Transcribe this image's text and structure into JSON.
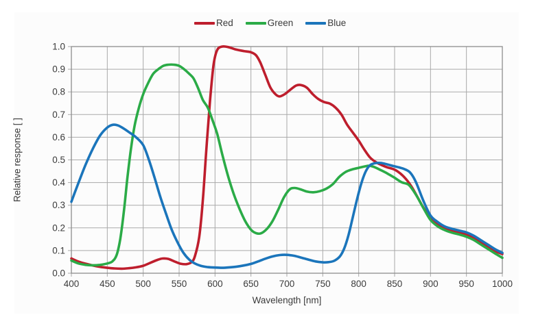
{
  "page": {
    "background_color": "#ffffff",
    "panel_color": "#fcfcfc",
    "text_color": "#3a3a3a",
    "grid_color": "#a9a9a9",
    "frame_color": "#8c8c8c"
  },
  "chart_data": {
    "type": "line",
    "title": "",
    "xlabel": "Wavelength [nm]",
    "ylabel": "Relative response [ ]",
    "xlim": [
      400,
      1000
    ],
    "ylim": [
      0.0,
      1.0
    ],
    "x_ticks": [
      400,
      450,
      500,
      550,
      600,
      650,
      700,
      750,
      800,
      850,
      900,
      950,
      1000
    ],
    "y_ticks": [
      0.0,
      0.1,
      0.2,
      0.3,
      0.4,
      0.5,
      0.6,
      0.7,
      0.8,
      0.9,
      1.0
    ],
    "grid": true,
    "legend_position": "top-center",
    "series": [
      {
        "name": "Red",
        "color": "#be1e2d",
        "points": [
          [
            400,
            0.065
          ],
          [
            410,
            0.051
          ],
          [
            420,
            0.042
          ],
          [
            430,
            0.034
          ],
          [
            440,
            0.028
          ],
          [
            450,
            0.024
          ],
          [
            460,
            0.021
          ],
          [
            470,
            0.02
          ],
          [
            480,
            0.022
          ],
          [
            490,
            0.026
          ],
          [
            500,
            0.033
          ],
          [
            510,
            0.046
          ],
          [
            520,
            0.059
          ],
          [
            527,
            0.065
          ],
          [
            535,
            0.063
          ],
          [
            545,
            0.05
          ],
          [
            552,
            0.042
          ],
          [
            560,
            0.04
          ],
          [
            567,
            0.048
          ],
          [
            572,
            0.075
          ],
          [
            578,
            0.16
          ],
          [
            583,
            0.32
          ],
          [
            588,
            0.55
          ],
          [
            593,
            0.76
          ],
          [
            598,
            0.92
          ],
          [
            603,
            0.985
          ],
          [
            610,
            1.0
          ],
          [
            618,
            0.998
          ],
          [
            628,
            0.988
          ],
          [
            640,
            0.98
          ],
          [
            650,
            0.975
          ],
          [
            657,
            0.962
          ],
          [
            663,
            0.93
          ],
          [
            670,
            0.875
          ],
          [
            677,
            0.82
          ],
          [
            684,
            0.79
          ],
          [
            690,
            0.78
          ],
          [
            697,
            0.79
          ],
          [
            705,
            0.81
          ],
          [
            713,
            0.828
          ],
          [
            720,
            0.83
          ],
          [
            728,
            0.818
          ],
          [
            736,
            0.79
          ],
          [
            744,
            0.768
          ],
          [
            752,
            0.755
          ],
          [
            760,
            0.748
          ],
          [
            768,
            0.73
          ],
          [
            776,
            0.7
          ],
          [
            784,
            0.655
          ],
          [
            792,
            0.62
          ],
          [
            800,
            0.585
          ],
          [
            808,
            0.545
          ],
          [
            816,
            0.51
          ],
          [
            824,
            0.49
          ],
          [
            832,
            0.477
          ],
          [
            840,
            0.467
          ],
          [
            850,
            0.457
          ],
          [
            858,
            0.44
          ],
          [
            866,
            0.415
          ],
          [
            874,
            0.38
          ],
          [
            882,
            0.335
          ],
          [
            890,
            0.29
          ],
          [
            900,
            0.245
          ],
          [
            910,
            0.215
          ],
          [
            920,
            0.196
          ],
          [
            930,
            0.186
          ],
          [
            940,
            0.18
          ],
          [
            950,
            0.171
          ],
          [
            960,
            0.155
          ],
          [
            970,
            0.135
          ],
          [
            980,
            0.115
          ],
          [
            990,
            0.097
          ],
          [
            1000,
            0.085
          ]
        ]
      },
      {
        "name": "Green",
        "color": "#2bab47",
        "points": [
          [
            400,
            0.056
          ],
          [
            410,
            0.043
          ],
          [
            420,
            0.037
          ],
          [
            430,
            0.035
          ],
          [
            440,
            0.037
          ],
          [
            450,
            0.043
          ],
          [
            457,
            0.052
          ],
          [
            463,
            0.08
          ],
          [
            468,
            0.15
          ],
          [
            473,
            0.27
          ],
          [
            478,
            0.42
          ],
          [
            483,
            0.55
          ],
          [
            488,
            0.65
          ],
          [
            494,
            0.73
          ],
          [
            500,
            0.79
          ],
          [
            507,
            0.84
          ],
          [
            514,
            0.88
          ],
          [
            521,
            0.9
          ],
          [
            528,
            0.915
          ],
          [
            535,
            0.92
          ],
          [
            543,
            0.92
          ],
          [
            550,
            0.915
          ],
          [
            557,
            0.9
          ],
          [
            564,
            0.88
          ],
          [
            570,
            0.86
          ],
          [
            576,
            0.82
          ],
          [
            583,
            0.765
          ],
          [
            590,
            0.73
          ],
          [
            596,
            0.68
          ],
          [
            603,
            0.615
          ],
          [
            610,
            0.525
          ],
          [
            618,
            0.43
          ],
          [
            626,
            0.35
          ],
          [
            634,
            0.285
          ],
          [
            642,
            0.23
          ],
          [
            650,
            0.192
          ],
          [
            657,
            0.177
          ],
          [
            664,
            0.176
          ],
          [
            672,
            0.195
          ],
          [
            680,
            0.23
          ],
          [
            688,
            0.28
          ],
          [
            696,
            0.335
          ],
          [
            704,
            0.37
          ],
          [
            711,
            0.376
          ],
          [
            719,
            0.37
          ],
          [
            728,
            0.36
          ],
          [
            737,
            0.357
          ],
          [
            746,
            0.362
          ],
          [
            755,
            0.373
          ],
          [
            764,
            0.393
          ],
          [
            773,
            0.425
          ],
          [
            782,
            0.447
          ],
          [
            791,
            0.458
          ],
          [
            800,
            0.465
          ],
          [
            808,
            0.471
          ],
          [
            815,
            0.474
          ],
          [
            822,
            0.468
          ],
          [
            830,
            0.456
          ],
          [
            840,
            0.44
          ],
          [
            850,
            0.421
          ],
          [
            860,
            0.401
          ],
          [
            870,
            0.389
          ],
          [
            880,
            0.345
          ],
          [
            890,
            0.288
          ],
          [
            900,
            0.235
          ],
          [
            910,
            0.207
          ],
          [
            920,
            0.19
          ],
          [
            930,
            0.179
          ],
          [
            940,
            0.171
          ],
          [
            950,
            0.161
          ],
          [
            960,
            0.147
          ],
          [
            970,
            0.127
          ],
          [
            980,
            0.107
          ],
          [
            990,
            0.087
          ],
          [
            1000,
            0.068
          ]
        ]
      },
      {
        "name": "Blue",
        "color": "#1b75bb",
        "points": [
          [
            400,
            0.315
          ],
          [
            410,
            0.4
          ],
          [
            420,
            0.48
          ],
          [
            430,
            0.55
          ],
          [
            440,
            0.608
          ],
          [
            450,
            0.643
          ],
          [
            458,
            0.655
          ],
          [
            465,
            0.652
          ],
          [
            472,
            0.64
          ],
          [
            480,
            0.623
          ],
          [
            490,
            0.6
          ],
          [
            500,
            0.565
          ],
          [
            508,
            0.5
          ],
          [
            516,
            0.42
          ],
          [
            524,
            0.335
          ],
          [
            532,
            0.26
          ],
          [
            540,
            0.19
          ],
          [
            548,
            0.135
          ],
          [
            556,
            0.09
          ],
          [
            564,
            0.06
          ],
          [
            572,
            0.043
          ],
          [
            580,
            0.033
          ],
          [
            590,
            0.027
          ],
          [
            600,
            0.025
          ],
          [
            610,
            0.024
          ],
          [
            620,
            0.026
          ],
          [
            630,
            0.029
          ],
          [
            640,
            0.034
          ],
          [
            650,
            0.041
          ],
          [
            660,
            0.052
          ],
          [
            670,
            0.064
          ],
          [
            680,
            0.074
          ],
          [
            690,
            0.08
          ],
          [
            700,
            0.081
          ],
          [
            710,
            0.077
          ],
          [
            720,
            0.069
          ],
          [
            730,
            0.06
          ],
          [
            740,
            0.052
          ],
          [
            750,
            0.048
          ],
          [
            758,
            0.049
          ],
          [
            766,
            0.055
          ],
          [
            774,
            0.075
          ],
          [
            780,
            0.11
          ],
          [
            786,
            0.17
          ],
          [
            792,
            0.25
          ],
          [
            798,
            0.33
          ],
          [
            804,
            0.4
          ],
          [
            810,
            0.45
          ],
          [
            816,
            0.477
          ],
          [
            824,
            0.486
          ],
          [
            832,
            0.486
          ],
          [
            840,
            0.48
          ],
          [
            848,
            0.473
          ],
          [
            856,
            0.467
          ],
          [
            864,
            0.459
          ],
          [
            872,
            0.443
          ],
          [
            880,
            0.4
          ],
          [
            890,
            0.32
          ],
          [
            900,
            0.255
          ],
          [
            910,
            0.226
          ],
          [
            920,
            0.206
          ],
          [
            930,
            0.196
          ],
          [
            940,
            0.188
          ],
          [
            950,
            0.18
          ],
          [
            960,
            0.166
          ],
          [
            970,
            0.146
          ],
          [
            980,
            0.126
          ],
          [
            990,
            0.106
          ],
          [
            1000,
            0.09
          ]
        ]
      }
    ]
  }
}
